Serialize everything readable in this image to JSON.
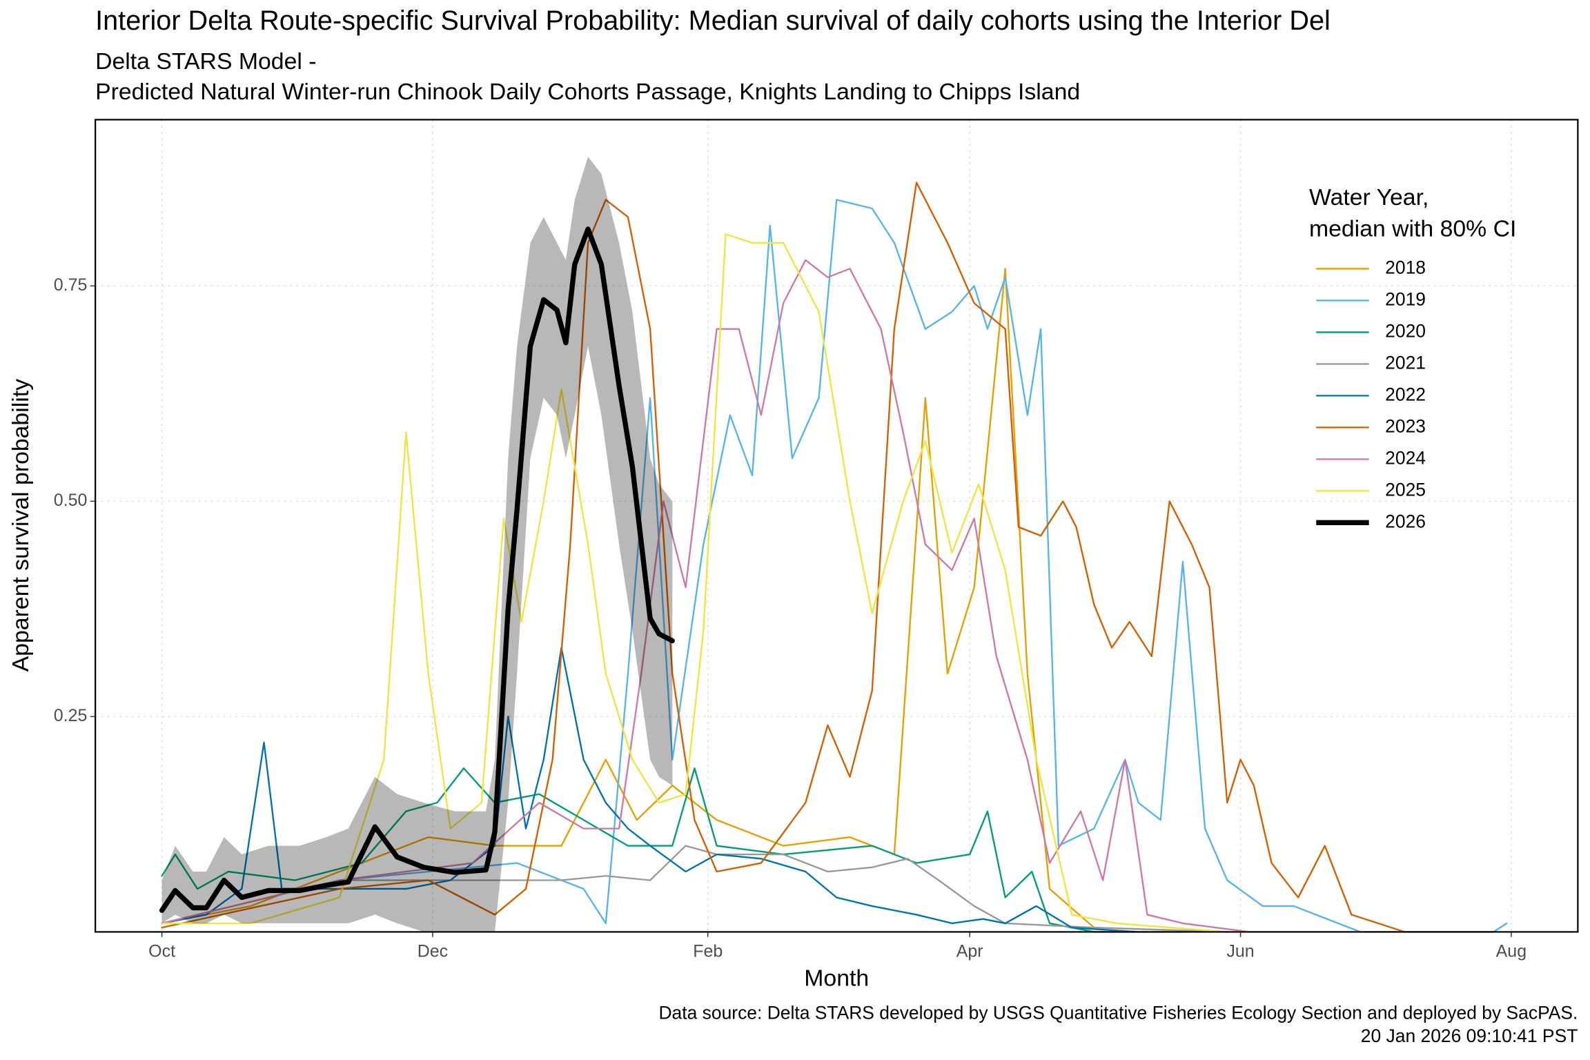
{
  "chart_data": {
    "type": "line",
    "title": "Interior Delta Route-specific Survival Probability: Median survival of daily cohorts using the Interior Del",
    "subtitle": [
      "Delta STARS Model -",
      "Predicted Natural Winter-run Chinook Daily Cohorts Passage, Knights Landing to Chipps Island"
    ],
    "x_label": "Month",
    "y_label": "Apparent survival probability",
    "caption": [
      "Data source: Delta STARS developed by USGS Quantitative Fisheries Ecology Section and deployed by SacPAS.",
      "20 Jan 2026 09:10:41 PST"
    ],
    "legend_title": [
      "Water Year,",
      "median with 80% CI"
    ],
    "legend": "top-right",
    "grid": true,
    "xlim": [
      -15,
      319
    ],
    "ylim": [
      0,
      0.943
    ],
    "xticks": [
      {
        "value": 0,
        "label": "Oct"
      },
      {
        "value": 61,
        "label": "Dec"
      },
      {
        "value": 123,
        "label": "Feb"
      },
      {
        "value": 182,
        "label": "Apr"
      },
      {
        "value": 243,
        "label": "Jun"
      },
      {
        "value": 304,
        "label": "Aug"
      }
    ],
    "yticks": [
      {
        "value": 0.25,
        "label": "0.25"
      },
      {
        "value": 0.5,
        "label": "0.50"
      },
      {
        "value": 0.75,
        "label": "0.75"
      }
    ],
    "series": [
      {
        "name": "2018",
        "color": "#E69F00",
        "line_width": 1.6,
        "x": [
          0,
          20,
          40,
          60,
          75,
          90,
          100,
          107,
          115,
          125,
          140,
          155,
          165,
          172,
          177,
          183,
          190,
          195,
          200,
          210,
          240
        ],
        "values": [
          0.01,
          0.03,
          0.07,
          0.11,
          0.1,
          0.1,
          0.2,
          0.13,
          0.17,
          0.13,
          0.1,
          0.11,
          0.09,
          0.62,
          0.3,
          0.4,
          0.77,
          0.3,
          0.05,
          0.005,
          0.0
        ]
      },
      {
        "name": "2019",
        "color": "#56B4E9",
        "line_width": 1.6,
        "x": [
          0,
          40,
          80,
          95,
          100,
          105,
          110,
          115,
          122,
          128,
          133,
          137,
          142,
          148,
          152,
          160,
          165,
          172,
          178,
          183,
          186,
          190,
          195,
          198,
          202,
          210,
          217,
          220,
          225,
          230,
          235,
          240,
          248,
          255,
          270,
          300,
          303
        ],
        "values": [
          0.01,
          0.06,
          0.08,
          0.05,
          0.01,
          0.3,
          0.62,
          0.2,
          0.45,
          0.6,
          0.53,
          0.82,
          0.55,
          0.62,
          0.85,
          0.84,
          0.8,
          0.7,
          0.72,
          0.75,
          0.7,
          0.76,
          0.6,
          0.7,
          0.1,
          0.12,
          0.2,
          0.15,
          0.13,
          0.43,
          0.12,
          0.06,
          0.03,
          0.03,
          0.0,
          0.0,
          0.01
        ]
      },
      {
        "name": "2020",
        "color": "#009E73",
        "line_width": 1.6,
        "x": [
          0,
          3,
          8,
          15,
          30,
          45,
          55,
          62,
          68,
          75,
          85,
          95,
          105,
          115,
          120,
          125,
          140,
          160,
          170,
          182,
          186,
          190,
          196,
          200,
          210,
          230
        ],
        "values": [
          0.065,
          0.09,
          0.05,
          0.07,
          0.06,
          0.08,
          0.14,
          0.15,
          0.19,
          0.15,
          0.16,
          0.13,
          0.1,
          0.1,
          0.19,
          0.1,
          0.09,
          0.1,
          0.08,
          0.09,
          0.14,
          0.04,
          0.07,
          0.01,
          0.0,
          0.0
        ]
      },
      {
        "name": "2021",
        "color": "#999999",
        "line_width": 1.6,
        "x": [
          0,
          40,
          70,
          90,
          100,
          110,
          118,
          125,
          140,
          150,
          160,
          168,
          175,
          183,
          190,
          210,
          240
        ],
        "values": [
          0.01,
          0.06,
          0.06,
          0.06,
          0.065,
          0.06,
          0.1,
          0.09,
          0.09,
          0.07,
          0.075,
          0.085,
          0.06,
          0.03,
          0.01,
          0.005,
          0.0
        ]
      },
      {
        "name": "2022",
        "color": "#0072B2",
        "line_width": 1.6,
        "x": [
          0,
          10,
          18,
          23,
          27,
          35,
          45,
          55,
          65,
          75,
          78,
          82,
          86,
          90,
          95,
          100,
          105,
          110,
          118,
          125,
          135,
          145,
          152,
          160,
          170,
          178,
          185,
          190,
          197,
          205,
          220
        ],
        "values": [
          0.01,
          0.02,
          0.05,
          0.22,
          0.05,
          0.05,
          0.05,
          0.05,
          0.06,
          0.1,
          0.25,
          0.12,
          0.2,
          0.33,
          0.2,
          0.15,
          0.12,
          0.1,
          0.07,
          0.09,
          0.085,
          0.07,
          0.04,
          0.03,
          0.02,
          0.01,
          0.015,
          0.01,
          0.03,
          0.005,
          0.0
        ]
      },
      {
        "name": "2023",
        "color": "#D55E00",
        "line_width": 1.6,
        "x": [
          0,
          40,
          60,
          75,
          82,
          88,
          92,
          96,
          100,
          105,
          110,
          115,
          120,
          125,
          135,
          145,
          150,
          155,
          160,
          165,
          170,
          177,
          183,
          190,
          193,
          198,
          203,
          206,
          210,
          214,
          218,
          223,
          227,
          232,
          236,
          240,
          243,
          246,
          250,
          256,
          262,
          268,
          280,
          300
        ],
        "values": [
          0.005,
          0.05,
          0.06,
          0.02,
          0.05,
          0.2,
          0.45,
          0.8,
          0.85,
          0.83,
          0.7,
          0.3,
          0.13,
          0.07,
          0.08,
          0.15,
          0.24,
          0.18,
          0.28,
          0.7,
          0.87,
          0.8,
          0.73,
          0.7,
          0.47,
          0.46,
          0.5,
          0.47,
          0.38,
          0.33,
          0.36,
          0.32,
          0.5,
          0.45,
          0.4,
          0.15,
          0.2,
          0.17,
          0.08,
          0.04,
          0.1,
          0.02,
          0.0,
          0.0
        ]
      },
      {
        "name": "2024",
        "color": "#CC79A7",
        "line_width": 1.6,
        "x": [
          0,
          40,
          70,
          85,
          95,
          103,
          108,
          113,
          118,
          125,
          130,
          135,
          140,
          145,
          150,
          155,
          162,
          167,
          172,
          178,
          183,
          188,
          195,
          200,
          207,
          212,
          217,
          222,
          230,
          245
        ],
        "values": [
          0.01,
          0.06,
          0.08,
          0.15,
          0.12,
          0.12,
          0.3,
          0.5,
          0.4,
          0.7,
          0.7,
          0.6,
          0.73,
          0.78,
          0.76,
          0.77,
          0.7,
          0.58,
          0.45,
          0.42,
          0.48,
          0.32,
          0.2,
          0.08,
          0.14,
          0.06,
          0.2,
          0.02,
          0.01,
          0.0
        ]
      },
      {
        "name": "2025",
        "color": "#F0E442",
        "line_width": 1.6,
        "x": [
          0,
          20,
          40,
          50,
          55,
          60,
          65,
          72,
          77,
          81,
          86,
          90,
          96,
          100,
          106,
          112,
          118,
          122,
          127,
          133,
          140,
          148,
          155,
          160,
          167,
          172,
          178,
          184,
          190,
          197,
          205,
          215,
          240,
          280
        ],
        "values": [
          0.01,
          0.01,
          0.04,
          0.2,
          0.58,
          0.3,
          0.12,
          0.15,
          0.48,
          0.36,
          0.5,
          0.63,
          0.45,
          0.3,
          0.2,
          0.15,
          0.16,
          0.35,
          0.81,
          0.8,
          0.8,
          0.72,
          0.5,
          0.37,
          0.5,
          0.57,
          0.44,
          0.52,
          0.42,
          0.2,
          0.02,
          0.01,
          0.0,
          0.0
        ]
      },
      {
        "name": "2026",
        "color": "#000000",
        "line_width": 5,
        "x": [
          0,
          3,
          7,
          10,
          14,
          18,
          24,
          31,
          37,
          42,
          48,
          53,
          59,
          66,
          73,
          75,
          78,
          80,
          83,
          86,
          89,
          91,
          93,
          96,
          99,
          103,
          106,
          110,
          112,
          115
        ],
        "values": [
          0.025,
          0.048,
          0.028,
          0.028,
          0.06,
          0.04,
          0.048,
          0.048,
          0.054,
          0.058,
          0.122,
          0.087,
          0.075,
          0.069,
          0.072,
          0.116,
          0.375,
          0.49,
          0.68,
          0.734,
          0.722,
          0.684,
          0.775,
          0.816,
          0.775,
          0.634,
          0.54,
          0.364,
          0.346,
          0.338
        ],
        "lower": [
          0.01,
          0.02,
          0.01,
          0.01,
          0.02,
          0.01,
          0.01,
          0.01,
          0.01,
          0.01,
          0.02,
          0.01,
          0.0,
          0.0,
          0.0,
          0.0,
          0.15,
          0.3,
          0.55,
          0.62,
          0.6,
          0.55,
          0.6,
          0.68,
          0.6,
          0.45,
          0.35,
          0.2,
          0.18,
          0.17
        ],
        "upper": [
          0.06,
          0.1,
          0.07,
          0.07,
          0.11,
          0.09,
          0.1,
          0.1,
          0.11,
          0.12,
          0.18,
          0.16,
          0.15,
          0.14,
          0.14,
          0.2,
          0.55,
          0.68,
          0.8,
          0.83,
          0.8,
          0.78,
          0.85,
          0.9,
          0.88,
          0.8,
          0.72,
          0.55,
          0.52,
          0.5
        ]
      }
    ]
  }
}
